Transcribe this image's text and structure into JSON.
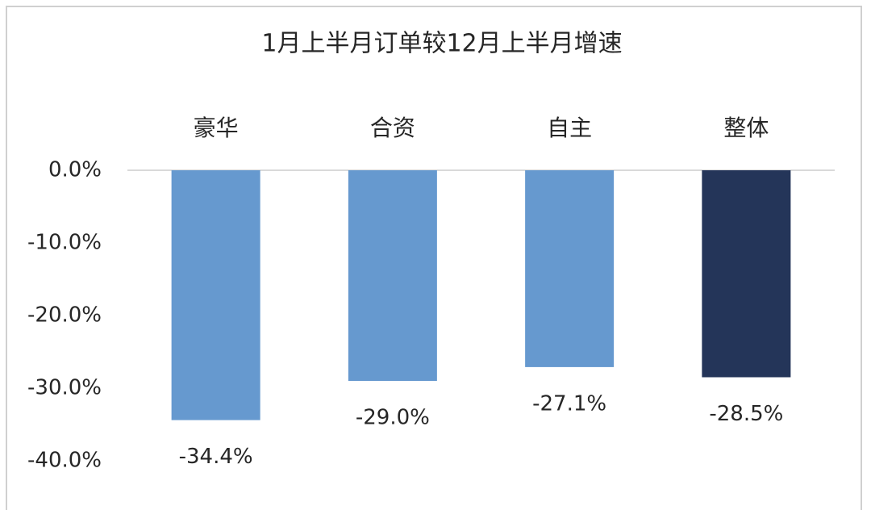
{
  "chart_data": {
    "type": "bar",
    "title": "1月上半月订单较12月上半月增速",
    "categories": [
      "豪华",
      "合资",
      "自主",
      "整体"
    ],
    "values": [
      -34.4,
      -29.0,
      -27.1,
      -28.5
    ],
    "value_labels": [
      "-34.4%",
      "-29.0%",
      "-27.1%",
      "-28.5%"
    ],
    "colors": [
      "#6699cf",
      "#6699cf",
      "#6699cf",
      "#243559"
    ],
    "ylim": [
      -40,
      0
    ],
    "yticks": [
      {
        "value": 0,
        "label": "0.0%"
      },
      {
        "value": -10,
        "label": "-10.0%"
      },
      {
        "value": -20,
        "label": "-20.0%"
      },
      {
        "value": -30,
        "label": "-30.0%"
      },
      {
        "value": -40,
        "label": "-40.0%"
      }
    ],
    "grid": false
  }
}
